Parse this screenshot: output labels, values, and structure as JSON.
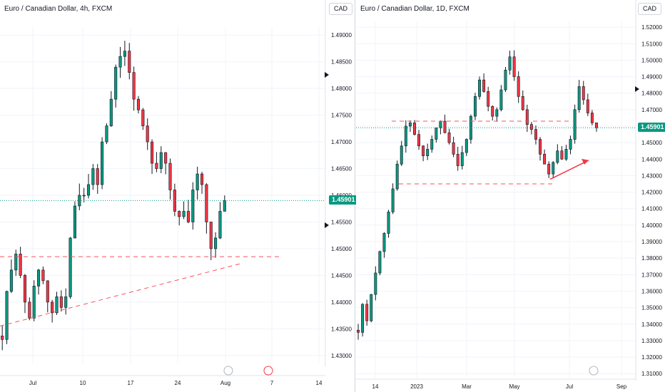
{
  "colors": {
    "up": "#089981",
    "down": "#f23645",
    "candle": "#131722",
    "grid": "#f0f3fa",
    "dashed_level": "#f7525f",
    "arrow": "#f23645",
    "last_price_bg": "#089981",
    "last_price_line": "#089981",
    "axis_text": "#131722"
  },
  "chart_data": [
    {
      "type": "candlestick",
      "title": "Euro / Canadian Dollar, 4h, FXCM",
      "currency_button": "CAD",
      "last_price_label": "1.45901",
      "last_price": 1.45901,
      "y_ticks": [
        1.49,
        1.485,
        1.48,
        1.475,
        1.47,
        1.465,
        1.46,
        1.455,
        1.45,
        1.445,
        1.44,
        1.435,
        1.43
      ],
      "y_tick_labels": [
        "1.49000",
        "1.48500",
        "1.48000",
        "1.47500",
        "1.47000",
        "1.46500",
        "1.46000",
        "1.45500",
        "1.45000",
        "1.44500",
        "1.44000",
        "1.43500",
        "1.43000"
      ],
      "ylim": [
        1.4285,
        1.4915
      ],
      "x_ticks": [
        "Jul",
        "10",
        "17",
        "24",
        "Aug",
        "7",
        "14"
      ],
      "annotations": {
        "horizontal_dashed": 1.4485,
        "trendline_note": "rising dashed trendline from early July lows"
      },
      "series_close_path": [
        1.433,
        1.442,
        1.446,
        1.449,
        1.445,
        1.44,
        1.437,
        1.443,
        1.446,
        1.444,
        1.44,
        1.438,
        1.441,
        1.439,
        1.441,
        1.452,
        1.458,
        1.46,
        1.46,
        1.462,
        1.465,
        1.462,
        1.47,
        1.473,
        1.478,
        1.484,
        1.486,
        1.487,
        1.483,
        1.478,
        1.476,
        1.473,
        1.47,
        1.466,
        1.465,
        1.468,
        1.466,
        1.461,
        1.457,
        1.456,
        1.457,
        1.455,
        1.461,
        1.464,
        1.462,
        1.455,
        1.45,
        1.452,
        1.457,
        1.459
      ]
    },
    {
      "type": "candlestick",
      "title": "Euro / Canadian Dollar, 1D, FXCM",
      "currency_button": "CAD",
      "last_price_label": "1.45901",
      "last_price": 1.45901,
      "y_ticks": [
        1.52,
        1.51,
        1.5,
        1.49,
        1.48,
        1.47,
        1.46,
        1.45,
        1.44,
        1.43,
        1.42,
        1.41,
        1.4,
        1.39,
        1.38,
        1.37,
        1.36,
        1.35,
        1.34,
        1.33,
        1.32,
        1.31
      ],
      "y_tick_labels": [
        "1.52000",
        "1.51000",
        "1.50000",
        "1.49000",
        "1.48000",
        "1.47000",
        "",
        "1.45000",
        "1.44000",
        "1.43000",
        "1.42000",
        "1.41000",
        "1.40000",
        "1.39000",
        "1.38000",
        "1.37000",
        "1.36000",
        "1.35000",
        "1.34000",
        "1.33000",
        "1.32000",
        "1.31000"
      ],
      "ylim": [
        1.3075,
        1.5235
      ],
      "x_ticks": [
        "14",
        "2023",
        "Mar",
        "May",
        "Jul",
        "Sep"
      ],
      "annotations": {
        "horizontal_dashed_levels": [
          1.463,
          1.425
        ],
        "arrow": "rising red arrow from late May lows"
      },
      "series_close_path": [
        1.335,
        1.352,
        1.342,
        1.358,
        1.371,
        1.384,
        1.395,
        1.408,
        1.422,
        1.437,
        1.448,
        1.46,
        1.462,
        1.455,
        1.448,
        1.442,
        1.446,
        1.452,
        1.459,
        1.463,
        1.456,
        1.45,
        1.443,
        1.436,
        1.444,
        1.452,
        1.466,
        1.478,
        1.488,
        1.481,
        1.472,
        1.466,
        1.47,
        1.482,
        1.494,
        1.502,
        1.49,
        1.478,
        1.47,
        1.461,
        1.458,
        1.452,
        1.443,
        1.437,
        1.431,
        1.438,
        1.445,
        1.44,
        1.446,
        1.452,
        1.47,
        1.484,
        1.476,
        1.468,
        1.462,
        1.459
      ]
    }
  ]
}
